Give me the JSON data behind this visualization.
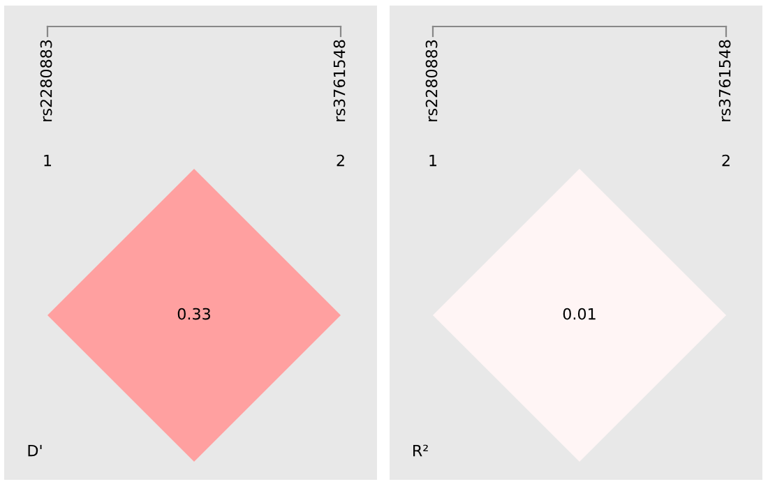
{
  "chart_data": [
    {
      "type": "other",
      "values": [
        0.33
      ],
      "data_labels": true,
      "colors": [
        "#ffa0a0"
      ],
      "annotations": [
        "rs2280883",
        "rs3761548",
        "1",
        "2",
        "D'"
      ]
    },
    {
      "type": "other",
      "values": [
        0.01
      ],
      "data_labels": true,
      "colors": [
        "#fff5f5"
      ],
      "annotations": [
        "rs2280883",
        "rs3761548",
        "1",
        "2",
        "R²"
      ]
    }
  ]
}
